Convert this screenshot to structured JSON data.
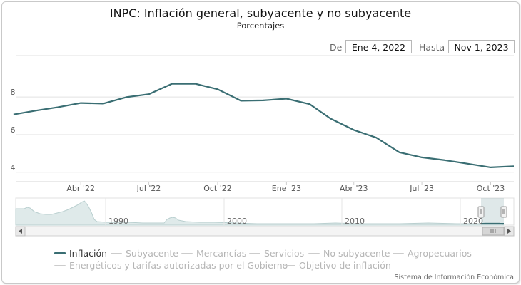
{
  "chart_data": {
    "type": "line",
    "title": "INPC: Inflación general, subyacente y no subyacente",
    "subtitle": "Porcentajes",
    "x_ticks": [
      "Abr '22",
      "Jul '22",
      "Oct '22",
      "Ene '23",
      "Abr '23",
      "Jul '23",
      "Oct '23"
    ],
    "y_ticks": [
      4,
      6,
      8
    ],
    "ylim": [
      3.5,
      10.2
    ],
    "xlim": [
      "2022-01-04",
      "2023-11-01"
    ],
    "grid": true,
    "legend_position": "bottom",
    "series": [
      {
        "name": "Inflación",
        "color": "#3a6e73",
        "x": [
          "2022-01-01",
          "2022-02-01",
          "2022-03-01",
          "2022-04-01",
          "2022-05-01",
          "2022-06-01",
          "2022-07-01",
          "2022-08-01",
          "2022-09-01",
          "2022-10-01",
          "2022-11-01",
          "2022-12-01",
          "2023-01-01",
          "2023-02-01",
          "2023-03-01",
          "2023-04-01",
          "2023-05-01",
          "2023-06-01",
          "2023-07-01",
          "2023-08-01",
          "2023-09-01",
          "2023-10-01",
          "2023-11-01"
        ],
        "values": [
          7.07,
          7.28,
          7.45,
          7.68,
          7.65,
          7.99,
          8.15,
          8.7,
          8.7,
          8.41,
          7.8,
          7.82,
          7.91,
          7.62,
          6.85,
          6.25,
          5.84,
          5.06,
          4.79,
          4.64,
          4.45,
          4.26,
          4.32
        ]
      }
    ],
    "navigator": {
      "x_ticks": [
        "1990",
        "2000",
        "2010",
        "2020"
      ]
    }
  },
  "range_selector": {
    "from_label": "De",
    "from_value": "Ene 4, 2022",
    "to_label": "Hasta",
    "to_value": "Nov 1, 2023"
  },
  "legend": [
    {
      "label": "Inflación",
      "active": true
    },
    {
      "label": "Subyacente",
      "active": false
    },
    {
      "label": "Mercancías",
      "active": false
    },
    {
      "label": "Servicios",
      "active": false
    },
    {
      "label": "No subyacente",
      "active": false
    },
    {
      "label": "Agropecuarios",
      "active": false
    },
    {
      "label": "Energéticos y tarifas autorizadas por el Gobierno",
      "active": false
    },
    {
      "label": "Objetivo de inflación",
      "active": false
    }
  ],
  "credits": "Sistema de Información Económica"
}
